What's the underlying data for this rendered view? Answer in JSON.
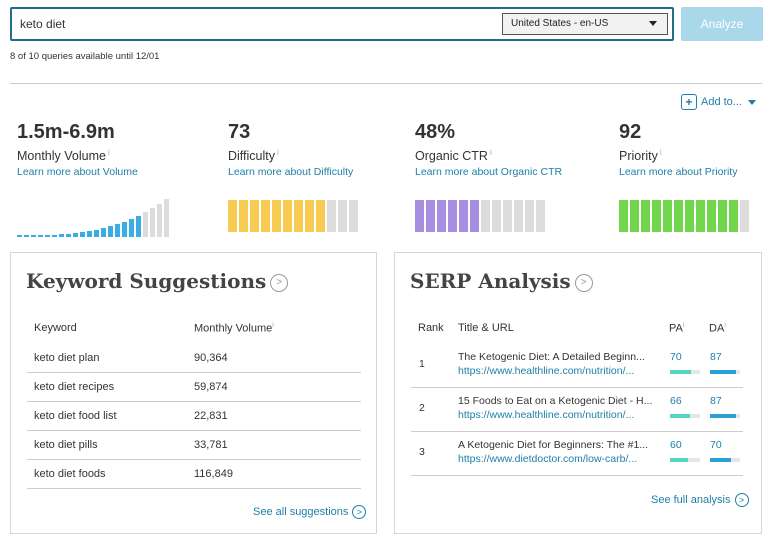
{
  "search": {
    "query": "keto diet",
    "locale": "United States - en-US",
    "analyze_label": "Analyze",
    "quota": "8 of 10 queries available until 12/01"
  },
  "add_to": {
    "label": "Add to..."
  },
  "metrics": [
    {
      "value": "1.5m-6.9m",
      "label": "Monthly Volume",
      "learn": "Learn more about Volume",
      "info": "i"
    },
    {
      "value": "73",
      "label": "Difficulty",
      "learn": "Learn more about Difficulty",
      "info": "i",
      "level": 73,
      "color": "#f7cb52"
    },
    {
      "value": "48%",
      "label": "Organic CTR",
      "learn": "Learn more about Organic CTR",
      "info": "i",
      "level": 48,
      "color": "#a88ee1"
    },
    {
      "value": "92",
      "label": "Priority",
      "learn": "Learn more about Priority",
      "info": "i",
      "level": 92,
      "color": "#72d64c"
    }
  ],
  "keyword_suggestions": {
    "title": "Keyword Suggestions",
    "col_keyword": "Keyword",
    "col_volume": "Monthly Volume",
    "rows": [
      {
        "keyword": "keto diet plan",
        "volume": "90,364"
      },
      {
        "keyword": "keto diet recipes",
        "volume": "59,874"
      },
      {
        "keyword": "keto diet food list",
        "volume": "22,831"
      },
      {
        "keyword": "keto diet pills",
        "volume": "33,781"
      },
      {
        "keyword": "keto diet foods",
        "volume": "116,849"
      }
    ],
    "see_all": "See all suggestions"
  },
  "serp": {
    "title": "SERP Analysis",
    "col_rank": "Rank",
    "col_title": "Title & URL",
    "col_pa": "PA",
    "col_da": "DA",
    "rows": [
      {
        "rank": "1",
        "title": "The Ketogenic Diet: A Detailed Beginn...",
        "url": "https://www.healthline.com/nutrition/...",
        "pa": "70",
        "da": "87"
      },
      {
        "rank": "2",
        "title": "15 Foods to Eat on a Ketogenic Diet - H...",
        "url": "https://www.healthline.com/nutrition/...",
        "pa": "66",
        "da": "87"
      },
      {
        "rank": "3",
        "title": "A Ketogenic Diet for Beginners: The #1...",
        "url": "https://www.dietdoctor.com/low-carb/...",
        "pa": "60",
        "da": "70"
      }
    ],
    "see_full": "See full analysis"
  },
  "colors": {
    "accent": "#1e7fa8",
    "volume_bar": "#3aaee4",
    "track": "#dcdcdc",
    "pa_bar": "#56d6c0",
    "da_bar": "#2b9fd6"
  }
}
